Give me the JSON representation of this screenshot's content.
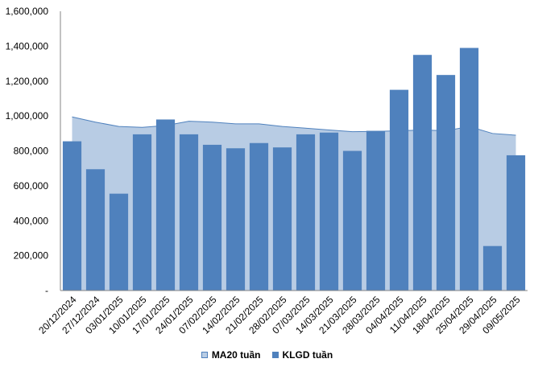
{
  "chart_data": {
    "type": "bar",
    "categories": [
      "20/12/2024",
      "27/12/2024",
      "03/01/2025",
      "10/01/2025",
      "17/01/2025",
      "24/01/2025",
      "07/02/2025",
      "14/02/2025",
      "21/02/2025",
      "28/02/2025",
      "07/03/2025",
      "14/03/2025",
      "21/03/2025",
      "28/03/2025",
      "04/04/2025",
      "11/04/2025",
      "18/04/2025",
      "25/04/2025",
      "29/04/2025",
      "09/05/2025"
    ],
    "series": [
      {
        "name": "MA20 tuần",
        "kind": "area",
        "color": "#b8cce4",
        "stroke": "#4f81bd",
        "values": [
          995000,
          965000,
          940000,
          935000,
          945000,
          970000,
          965000,
          955000,
          955000,
          940000,
          930000,
          920000,
          910000,
          912000,
          915000,
          920000,
          915000,
          940000,
          900000,
          890000
        ]
      },
      {
        "name": "KLGD tuần",
        "kind": "bar",
        "color": "#4f81bd",
        "values": [
          855000,
          695000,
          555000,
          895000,
          980000,
          895000,
          835000,
          815000,
          845000,
          820000,
          895000,
          905000,
          800000,
          915000,
          1150000,
          1350000,
          1235000,
          1390000,
          255000,
          775000
        ]
      }
    ],
    "yticks": [
      "-",
      "200,000",
      "400,000",
      "600,000",
      "800,000",
      "1,000,000",
      "1,200,000",
      "1,400,000",
      "1,600,000"
    ],
    "ylim": [
      0,
      1600000
    ],
    "grid": false,
    "legend_position": "bottom"
  }
}
